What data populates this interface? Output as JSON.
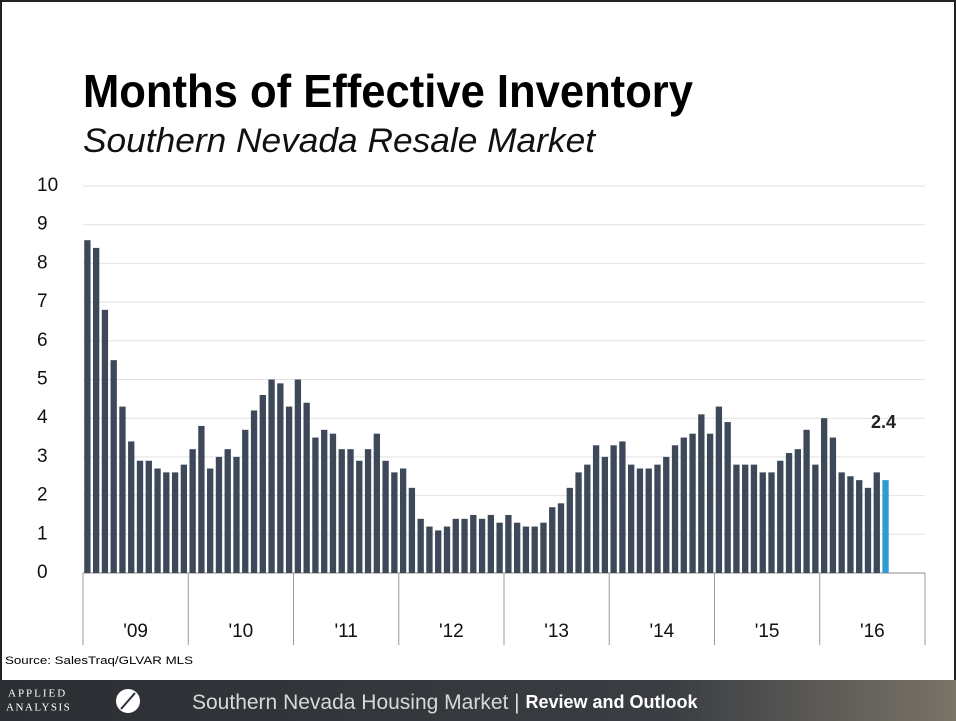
{
  "chart_data": {
    "type": "bar",
    "title": "Months of Effective Inventory",
    "subtitle": "Southern Nevada Resale Market",
    "source": "Source: SalesTraq/GLVAR MLS",
    "categories": [
      null,
      null,
      null,
      null,
      null,
      null,
      null,
      null,
      null,
      null,
      null,
      null,
      null,
      null,
      null,
      null,
      null,
      null,
      null,
      null,
      null,
      null,
      null,
      null,
      null,
      null,
      null,
      null,
      null,
      null,
      null,
      null,
      null,
      null,
      null,
      null,
      null,
      null,
      null,
      null,
      null,
      null,
      null,
      null,
      null,
      null,
      null,
      null,
      null,
      null,
      null,
      null,
      null,
      null,
      null,
      null,
      null,
      null,
      null,
      null,
      null,
      null,
      null,
      null,
      null,
      null,
      null,
      null,
      null,
      null,
      null,
      null,
      null,
      null,
      null,
      null,
      null,
      null,
      null,
      null,
      null,
      null,
      null,
      null,
      null,
      null,
      null,
      null,
      null,
      null,
      null,
      null
    ],
    "year_groups": [
      "'09",
      "'10",
      "'11",
      "'12",
      "'13",
      "'14",
      "'15",
      "'16"
    ],
    "values": [
      8.6,
      8.4,
      6.8,
      5.5,
      4.3,
      3.4,
      2.9,
      2.9,
      2.7,
      2.6,
      2.6,
      2.8,
      3.2,
      3.8,
      2.7,
      3.0,
      3.2,
      3.0,
      3.7,
      4.2,
      4.6,
      5.0,
      4.9,
      4.3,
      5.0,
      4.4,
      3.5,
      3.7,
      3.6,
      3.2,
      3.2,
      2.9,
      3.2,
      3.6,
      2.9,
      2.6,
      2.7,
      2.2,
      1.4,
      1.2,
      1.1,
      1.2,
      1.4,
      1.4,
      1.5,
      1.4,
      1.5,
      1.3,
      1.5,
      1.3,
      1.2,
      1.2,
      1.3,
      1.7,
      1.8,
      2.2,
      2.6,
      2.8,
      3.3,
      3.0,
      3.3,
      3.4,
      2.8,
      2.7,
      2.7,
      2.8,
      3.0,
      3.3,
      3.5,
      3.6,
      4.1,
      3.6,
      4.3,
      3.9,
      2.8,
      2.8,
      2.8,
      2.6,
      2.6,
      2.9,
      3.1,
      3.2,
      3.7,
      2.8,
      4.0,
      3.5,
      2.6,
      2.5,
      2.4,
      2.2,
      2.6,
      2.4
    ],
    "color": "#3d4859",
    "highlight": {
      "index": 91,
      "color": "#2e9bd6"
    },
    "ylim": [
      0,
      10
    ],
    "yticks": [
      0,
      1,
      2,
      3,
      4,
      5,
      6,
      7,
      8,
      9,
      10
    ],
    "grid": true
  },
  "footer": {
    "logo": [
      "APPLIED",
      "ANALYSIS"
    ],
    "title": "Southern Nevada Housing Market | ",
    "subtitle": "Review and Outlook"
  }
}
